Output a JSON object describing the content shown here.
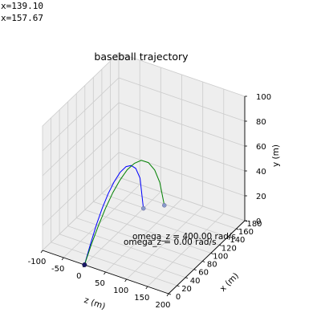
{
  "readout": [
    "x=139.10",
    "x=157.67"
  ],
  "chart_data": {
    "type": "line",
    "projection": "3d",
    "title": "baseball trajectory",
    "xlabel": "z (m)",
    "ylabel": "x (m)",
    "zlabel": "y (m)",
    "xticks": [
      -100,
      -50,
      0,
      50,
      100,
      150,
      200
    ],
    "yticks": [
      0,
      20,
      40,
      60,
      80,
      100,
      120,
      140,
      160,
      180
    ],
    "zticks": [
      0,
      20,
      40,
      60,
      80,
      100
    ],
    "xlim": [
      -100,
      200
    ],
    "ylim": [
      0,
      180
    ],
    "zlim": [
      0,
      100
    ],
    "grid": true,
    "colors": {
      "series_a": "#0000ff",
      "series_b": "#008000",
      "pane": "#eeeeee",
      "grid": "#cccccc"
    },
    "series": [
      {
        "name": "omega_z = 0.00 rad/s",
        "color": "#0000ff",
        "landing_x": 139.1,
        "points": [
          [
            0,
            0,
            0
          ],
          [
            0,
            14,
            12
          ],
          [
            0,
            28,
            23
          ],
          [
            0,
            42,
            32
          ],
          [
            0,
            56,
            39
          ],
          [
            0,
            70,
            44
          ],
          [
            0,
            84,
            47
          ],
          [
            0,
            98,
            47
          ],
          [
            0,
            110,
            44
          ],
          [
            0,
            121,
            38
          ],
          [
            0,
            131,
            27
          ],
          [
            0,
            139.1,
            0
          ]
        ]
      },
      {
        "name": "omega_z = 400.00 rad/s",
        "color": "#008000",
        "landing_x": 157.67,
        "points": [
          [
            0,
            0,
            0
          ],
          [
            2,
            14,
            12
          ],
          [
            5,
            28,
            23
          ],
          [
            8,
            42,
            33
          ],
          [
            11,
            56,
            41
          ],
          [
            14,
            70,
            47
          ],
          [
            17,
            84,
            51
          ],
          [
            20,
            98,
            52
          ],
          [
            22,
            112,
            50
          ],
          [
            25,
            126,
            44
          ],
          [
            27,
            139,
            34
          ],
          [
            29,
            149,
            21
          ],
          [
            31,
            157.67,
            0
          ]
        ]
      }
    ],
    "annotations": [
      "omega_z = 400.00 rad/s",
      "omega_z = 0.00 rad/s"
    ]
  }
}
